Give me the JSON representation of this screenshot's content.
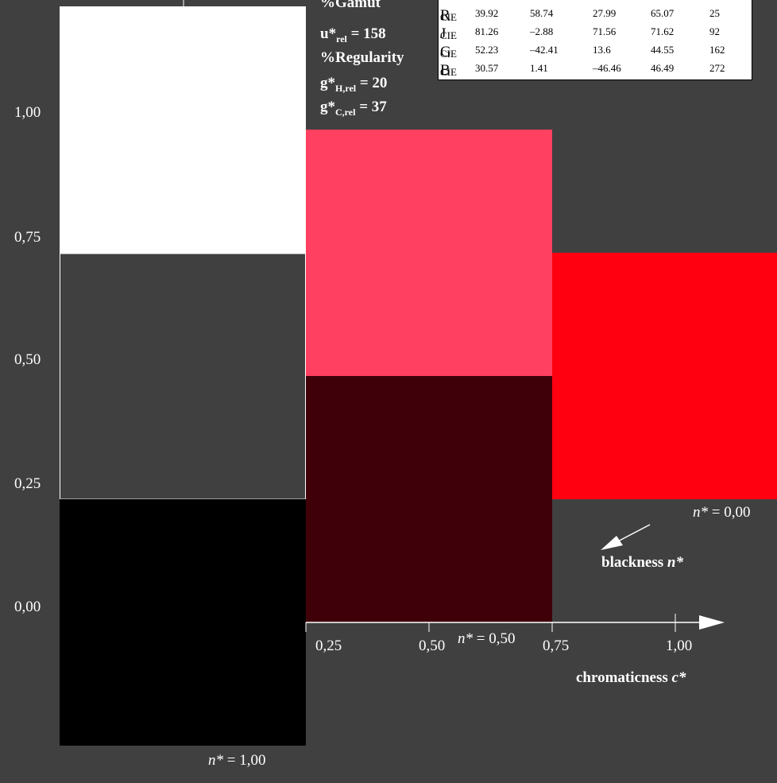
{
  "colors": {
    "background": "#404040",
    "white_patch": "#ffffff",
    "grey_patch": "#404040",
    "black_patch": "#000000",
    "pink_patch": "#ff4060",
    "maroon_patch": "#40000a",
    "red_patch": "#ff0010"
  },
  "y_ticks": [
    "1,00",
    "0,75",
    "0,50",
    "0,25",
    "0,00"
  ],
  "x_ticks": [
    "0,25",
    "0,50",
    "0,75",
    "1,00"
  ],
  "x_axis_label": {
    "text": "chromaticness ",
    "var": "c*"
  },
  "blackness_label": {
    "text": "blackness ",
    "var": "n*"
  },
  "n_labels": {
    "n0": {
      "var": "n*",
      "value": " = 0,00"
    },
    "n05": {
      "var": "n*",
      "value": " = 0,50"
    },
    "n1": {
      "var": "n*",
      "value": " = 1,00"
    }
  },
  "stats": {
    "gamut": "%Gamut",
    "u_base": "u*",
    "u_sub": "rel",
    "u_value": " = 158",
    "regularity": "%Regularity",
    "gh_base": "g*",
    "gh_sub": "H,rel",
    "gh_value": " = 20",
    "gc_base": "g*",
    "gc_sub": "C,rel",
    "gc_value": " = 37"
  },
  "cie_table": [
    {
      "base": "R",
      "sub": "CIE",
      "c1": "39.92",
      "c2": "58.74",
      "c3": "27.99",
      "c4": "65.07",
      "c5": "25"
    },
    {
      "base": "J",
      "sub": "CIE",
      "c1": "81.26",
      "c2": "–2.88",
      "c3": "71.56",
      "c4": "71.62",
      "c5": "92"
    },
    {
      "base": "G",
      "sub": "CIE",
      "c1": "52.23",
      "c2": "–42.41",
      "c3": "13.6",
      "c4": "44.55",
      "c5": "162"
    },
    {
      "base": "B",
      "sub": "CIE",
      "c1": "30.57",
      "c2": "1.41",
      "c3": "–46.46",
      "c4": "46.49",
      "c5": "272"
    }
  ]
}
